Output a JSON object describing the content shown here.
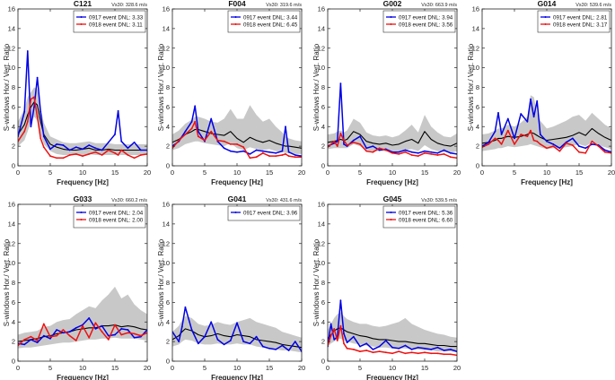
{
  "shared": {
    "xlabel": "Frequency [Hz]",
    "ylabel": "S-windows Hor./ Vert. Ratio",
    "xlim": [
      0,
      20
    ],
    "ylim": [
      0,
      16
    ],
    "xticks": [
      0,
      5,
      10,
      15,
      20
    ],
    "yticks": [
      0,
      2,
      4,
      6,
      8,
      10,
      12,
      14,
      16
    ],
    "colors": {
      "event0917": "#0000e6",
      "event0918": "#ee1111",
      "reference": "#000000",
      "band": "#c8c8c8"
    }
  },
  "chart_data": [
    {
      "type": "line",
      "title": "C121",
      "vs30": "Vs30: 328.6 m/s",
      "legend": [
        "0917 event DNL: 3.33",
        "0918 event DNL: 3.11"
      ],
      "x": [
        0,
        1,
        1.5,
        2,
        2.5,
        3,
        3.5,
        4,
        5,
        6,
        7,
        8,
        9,
        10,
        11,
        12,
        13,
        14,
        15,
        15.5,
        16,
        17,
        18,
        19,
        20
      ],
      "series": [
        {
          "name": "0917 event DNL: 3.33",
          "values": [
            3,
            5.5,
            11.7,
            4,
            6,
            9,
            5.5,
            3,
            1.7,
            2.2,
            2.1,
            1.6,
            1.9,
            1.7,
            2.1,
            1.8,
            1.6,
            2.4,
            3.2,
            5.6,
            2.5,
            1.8,
            2.4,
            1.6,
            1.6
          ]
        },
        {
          "name": "0918 event DNL: 3.11",
          "values": [
            2.5,
            3.5,
            4.5,
            6.8,
            7,
            5,
            2.8,
            1.9,
            1,
            0.8,
            0.8,
            1.1,
            1.2,
            1,
            1.2,
            1.4,
            1.1,
            1.6,
            1.3,
            1.1,
            1.6,
            1.1,
            0.8,
            1.1,
            1.2
          ]
        },
        {
          "name": "reference",
          "values": [
            3.2,
            4.2,
            5.2,
            6,
            6.5,
            6.2,
            4.5,
            3.2,
            2.2,
            1.9,
            1.7,
            1.6,
            1.6,
            1.7,
            1.8,
            1.6,
            1.6,
            1.7,
            1.6,
            1.6,
            1.6,
            1.6,
            1.6,
            1.6,
            1.6
          ]
        }
      ],
      "band": {
        "lower": [
          2,
          2.6,
          3.5,
          4.5,
          5,
          4.6,
          3.2,
          2.2,
          1.5,
          1.2,
          1.1,
          1.1,
          1.1,
          1.1,
          1.2,
          1.1,
          1.1,
          1.1,
          1.1,
          1.1,
          1.1,
          1.1,
          1.1,
          1.1,
          1.1
        ],
        "upper": [
          4.5,
          5.8,
          7,
          7.5,
          8,
          7.8,
          6,
          4.4,
          3,
          2.7,
          2.4,
          2.3,
          2.3,
          2.4,
          2.5,
          2.3,
          2.3,
          2.3,
          2.2,
          2.2,
          2.2,
          2.2,
          2.2,
          2.2,
          2.2
        ]
      }
    },
    {
      "type": "line",
      "title": "F004",
      "vs30": "Vs30: 319.6 m/s",
      "legend": [
        "0917 event DNL: 3.44",
        "0918 event DNL: 6.45"
      ],
      "x": [
        0,
        1,
        2,
        3,
        3.5,
        4,
        5,
        6,
        7,
        8,
        9,
        10,
        11,
        12,
        13,
        14,
        15,
        16,
        17,
        17.5,
        18,
        19,
        20
      ],
      "series": [
        {
          "name": "0917 event DNL: 3.44",
          "values": [
            2,
            2.5,
            3.5,
            4.5,
            6.1,
            3.5,
            2.5,
            4.8,
            2.5,
            1.8,
            1.5,
            1.4,
            1.5,
            1.2,
            1.6,
            1.5,
            1.4,
            1.3,
            1.5,
            4,
            1.4,
            1.1,
            1
          ]
        },
        {
          "name": "0918 event DNL: 6.45",
          "values": [
            1.8,
            2.6,
            3.2,
            3.8,
            4.5,
            3,
            2.6,
            3.5,
            2.6,
            2.5,
            2.2,
            2.2,
            1.9,
            0.8,
            0.9,
            1.3,
            1,
            1,
            1.1,
            1.2,
            1,
            0.9,
            0.9
          ]
        },
        {
          "name": "reference",
          "values": [
            2.4,
            2.7,
            3.2,
            3.5,
            3.7,
            3.7,
            3.5,
            3.3,
            3.2,
            3.1,
            3.5,
            2.8,
            2.4,
            2.9,
            2.6,
            2.4,
            2.6,
            2.3,
            2.1,
            2,
            2,
            1.9,
            1.8
          ]
        }
      ],
      "band": {
        "lower": [
          1.6,
          1.8,
          2.2,
          2.4,
          2.5,
          2.5,
          2.3,
          2.2,
          2.1,
          2,
          2.3,
          1.8,
          1.6,
          1.9,
          1.7,
          1.6,
          1.7,
          1.5,
          1.4,
          1.3,
          1.3,
          1.2,
          1.2
        ],
        "upper": [
          3.2,
          3.6,
          4.3,
          4.7,
          5,
          5,
          4.8,
          4.5,
          4.4,
          4.8,
          5.8,
          4.8,
          4.8,
          6.2,
          5.2,
          4.5,
          4.8,
          4,
          3.4,
          3,
          2.8,
          2.6,
          2.5
        ]
      }
    },
    {
      "type": "line",
      "title": "G002",
      "vs30": "Vs30: 663.9 m/s",
      "legend": [
        "0917 event DNL: 3.94",
        "0918 event DNL: 3.56"
      ],
      "x": [
        0,
        1,
        1.5,
        2,
        2.5,
        3,
        4,
        5,
        6,
        7,
        8,
        9,
        10,
        11,
        12,
        13,
        14,
        15,
        16,
        17,
        18,
        19,
        20
      ],
      "series": [
        {
          "name": "0917 event DNL: 3.94",
          "values": [
            2,
            2.3,
            2.5,
            8.4,
            2.2,
            2,
            2.6,
            3,
            1.8,
            2,
            1.6,
            1.7,
            1.4,
            1.4,
            1.6,
            1.4,
            1.3,
            1.5,
            1.4,
            1.3,
            1.6,
            1.3,
            1.2
          ]
        },
        {
          "name": "0918 event DNL: 3.56",
          "values": [
            1.9,
            2.5,
            2,
            3.3,
            2.6,
            2.1,
            2.4,
            2.2,
            1.5,
            1.4,
            1.8,
            1.6,
            1.3,
            1.2,
            1.4,
            1.1,
            1,
            1.3,
            1.2,
            1.1,
            1.2,
            0.9,
            0.8
          ]
        },
        {
          "name": "reference",
          "values": [
            2.4,
            2.5,
            2.6,
            2.7,
            2.6,
            2.7,
            3.5,
            3.2,
            2.5,
            2.3,
            2.2,
            2.3,
            2.1,
            2.2,
            2.5,
            2.7,
            2.3,
            3.5,
            2.7,
            2.3,
            2.1,
            2,
            2.3
          ]
        }
      ],
      "band": {
        "lower": [
          1.7,
          1.8,
          1.8,
          1.8,
          1.8,
          1.8,
          2.2,
          2,
          1.6,
          1.5,
          1.5,
          1.5,
          1.4,
          1.4,
          1.6,
          1.7,
          1.5,
          2.1,
          1.7,
          1.5,
          1.4,
          1.3,
          1.5
        ],
        "upper": [
          3.2,
          3.3,
          3.5,
          3.6,
          3.4,
          3.6,
          4.8,
          4.4,
          3.4,
          3.1,
          3,
          3.1,
          2.9,
          3.1,
          3.6,
          4.2,
          3.4,
          5.2,
          4,
          3.4,
          3,
          2.9,
          3.3
        ]
      }
    },
    {
      "type": "line",
      "title": "G014",
      "vs30": "Vs30: 539.6 m/s",
      "legend": [
        "0917 event DNL: 2.81",
        "0918 event DNL: 3.17"
      ],
      "x": [
        0,
        1,
        2,
        2.5,
        3,
        4,
        5,
        6,
        7,
        7.5,
        8,
        8.5,
        9,
        10,
        11,
        12,
        13,
        14,
        15,
        16,
        17,
        18,
        19,
        20
      ],
      "series": [
        {
          "name": "0917 event DNL: 2.81",
          "values": [
            2,
            2.4,
            3.5,
            5.4,
            3.2,
            4.8,
            2.8,
            5.3,
            4.5,
            6.8,
            5,
            6.6,
            3.2,
            2.5,
            2.2,
            1.8,
            2.4,
            2.8,
            2,
            1.8,
            2.2,
            2.1,
            1.6,
            1.4
          ]
        },
        {
          "name": "0918 event DNL: 3.17",
          "values": [
            1.9,
            2.2,
            2.8,
            2.6,
            2.2,
            3.6,
            2.2,
            3.2,
            3,
            3.6,
            2.6,
            2.5,
            2.2,
            1.8,
            2,
            1.5,
            2.3,
            2.1,
            1.4,
            1.3,
            2.5,
            2,
            1.4,
            1.3
          ]
        },
        {
          "name": "reference",
          "values": [
            2.3,
            2.4,
            2.6,
            2.8,
            2.8,
            3,
            2.9,
            3,
            3.2,
            3.4,
            3.3,
            3.1,
            2.9,
            2.6,
            2.7,
            2.8,
            2.9,
            3.1,
            3.4,
            3.1,
            3.8,
            3.3,
            2.9,
            2.6
          ]
        }
      ],
      "band": {
        "lower": [
          1.5,
          1.6,
          1.7,
          1.8,
          1.8,
          2,
          1.9,
          2,
          2.1,
          2.2,
          2.1,
          2,
          1.9,
          1.7,
          1.8,
          1.8,
          1.9,
          2,
          2.2,
          2,
          2.4,
          2.1,
          1.9,
          1.7
        ],
        "upper": [
          3.2,
          3.3,
          3.6,
          3.8,
          3.8,
          4.2,
          4,
          4.4,
          5,
          7.2,
          7,
          5.4,
          4.6,
          3.8,
          4,
          4.3,
          4.6,
          5,
          5.2,
          4.6,
          5.4,
          4.8,
          4.2,
          3.8
        ]
      }
    },
    {
      "type": "line",
      "title": "G033",
      "vs30": "Vs30: 660.2 m/s",
      "legend": [
        "0917 event DNL: 2.04",
        "0918 event DNL: 2.00"
      ],
      "x": [
        0,
        1,
        2,
        3,
        4,
        5,
        6,
        7,
        8,
        9,
        10,
        11,
        12,
        13,
        14,
        15,
        16,
        17,
        18,
        19,
        20
      ],
      "series": [
        {
          "name": "0917 event DNL: 2.04",
          "values": [
            1.8,
            1.7,
            2.2,
            1.9,
            2.6,
            2.3,
            3.2,
            2.9,
            3,
            3.4,
            3.7,
            4.4,
            3.3,
            3.6,
            2.6,
            2.7,
            3.3,
            3.2,
            2.4,
            2.5,
            3.2
          ]
        },
        {
          "name": "0918 event DNL: 2.00",
          "values": [
            1.6,
            2.2,
            2.5,
            2.1,
            3.8,
            2.5,
            2.6,
            3.2,
            2.6,
            2.1,
            3.6,
            2.4,
            3.9,
            3,
            2.2,
            3.7,
            2.7,
            2.9,
            2.8,
            2.6,
            2.9
          ]
        },
        {
          "name": "reference",
          "values": [
            2,
            2.1,
            2.2,
            2.3,
            2.5,
            2.6,
            2.8,
            2.9,
            3,
            3.2,
            3.3,
            3.4,
            3.4,
            3.6,
            3.6,
            3.7,
            3.5,
            3.6,
            3.5,
            3.3,
            3.2
          ]
        }
      ],
      "band": {
        "lower": [
          1.3,
          1.4,
          1.4,
          1.5,
          1.6,
          1.7,
          1.8,
          1.9,
          1.9,
          2,
          2.1,
          2.2,
          2.2,
          2.3,
          2.3,
          2.4,
          2.3,
          2.3,
          2.3,
          2.2,
          2.1
        ],
        "upper": [
          2.7,
          2.9,
          3,
          3.1,
          3.5,
          3.6,
          4,
          4.2,
          4.3,
          4.8,
          5.2,
          5.6,
          5.4,
          6.2,
          6.8,
          7.6,
          6.4,
          6.8,
          5.8,
          5.2,
          4.8
        ]
      }
    },
    {
      "type": "line",
      "title": "G041",
      "vs30": "Vs30: 431.6 m/s",
      "legend": [
        "0917 event DNL: 3.96"
      ],
      "x": [
        0,
        1,
        1.5,
        2,
        3,
        4,
        5,
        6,
        7,
        8,
        9,
        10,
        11,
        12,
        13,
        14,
        15,
        16,
        17,
        18,
        19,
        20
      ],
      "series": [
        {
          "name": "0917 event DNL: 3.96",
          "values": [
            3,
            2,
            3.5,
            5.5,
            3.2,
            1.8,
            2.5,
            4,
            2.2,
            1.7,
            2.1,
            3.9,
            2,
            1.8,
            2.5,
            1.5,
            1.3,
            1.2,
            1.6,
            1.1,
            2,
            1
          ]
        },
        {
          "name": "reference",
          "values": [
            2.2,
            2.6,
            3,
            3.3,
            3.1,
            2.7,
            2.5,
            2.6,
            2.8,
            2.6,
            2.5,
            2.7,
            2.6,
            2.5,
            2.2,
            2.1,
            2,
            1.9,
            1.7,
            1.6,
            1.5,
            1.4
          ]
        }
      ],
      "band": {
        "lower": [
          1.5,
          1.7,
          2,
          2.2,
          2.1,
          1.8,
          1.7,
          1.7,
          1.8,
          1.7,
          1.7,
          1.8,
          1.7,
          1.7,
          1.5,
          1.4,
          1.3,
          1.2,
          1.1,
          1.1,
          1,
          0.9
        ],
        "upper": [
          3,
          3.6,
          4.2,
          4.6,
          4.4,
          3.8,
          3.6,
          3.7,
          4,
          3.8,
          3.7,
          4,
          4.2,
          4.4,
          4,
          3.8,
          3.6,
          3.4,
          3,
          2.8,
          2.6,
          2.4
        ]
      }
    },
    {
      "type": "line",
      "title": "G045",
      "vs30": "Vs30: 539.5 m/s",
      "legend": [
        "0917 event DNL: 5.36",
        "0918 event DNL: 6.60"
      ],
      "x": [
        0,
        0.5,
        1,
        1.5,
        2,
        2.5,
        3,
        4,
        5,
        6,
        7,
        8,
        9,
        10,
        11,
        12,
        13,
        14,
        15,
        16,
        17,
        18,
        19,
        20
      ],
      "series": [
        {
          "name": "0917 event DNL: 5.36",
          "values": [
            1.5,
            3.8,
            2.2,
            2.5,
            6.2,
            2.8,
            1.9,
            2.5,
            1.5,
            1.8,
            1.2,
            1.5,
            2.1,
            1.4,
            1.3,
            1.6,
            1.2,
            1.4,
            1.3,
            1.2,
            1.4,
            1.1,
            1.2,
            1
          ]
        },
        {
          "name": "0918 event DNL: 6.60",
          "values": [
            1.6,
            2.6,
            3.3,
            2.1,
            3.6,
            1.8,
            1.3,
            1.2,
            1,
            1.1,
            0.9,
            1,
            0.9,
            0.8,
            1,
            0.8,
            0.9,
            0.8,
            0.9,
            0.8,
            0.8,
            0.7,
            0.7,
            0.6
          ]
        },
        {
          "name": "reference",
          "values": [
            2.3,
            2.7,
            3.1,
            3.3,
            3.4,
            3.2,
            3,
            2.8,
            2.6,
            2.5,
            2.3,
            2.2,
            2.2,
            2.1,
            2,
            2,
            1.9,
            1.8,
            1.8,
            1.7,
            1.6,
            1.6,
            1.5,
            1.5
          ]
        }
      ],
      "band": {
        "lower": [
          1.5,
          1.8,
          2,
          2.2,
          2.3,
          2.1,
          2,
          1.8,
          1.7,
          1.6,
          1.5,
          1.4,
          1.4,
          1.3,
          1.3,
          1.3,
          1.2,
          1.2,
          1.1,
          1.1,
          1,
          1,
          1,
          0.9
        ],
        "upper": [
          3.2,
          3.8,
          4.4,
          4.8,
          5,
          4.6,
          4.3,
          4,
          3.8,
          3.8,
          3.6,
          3.5,
          3.6,
          3.8,
          4,
          4.4,
          3.8,
          3.5,
          3.2,
          3,
          2.8,
          2.7,
          2.5,
          2.4
        ]
      }
    }
  ]
}
